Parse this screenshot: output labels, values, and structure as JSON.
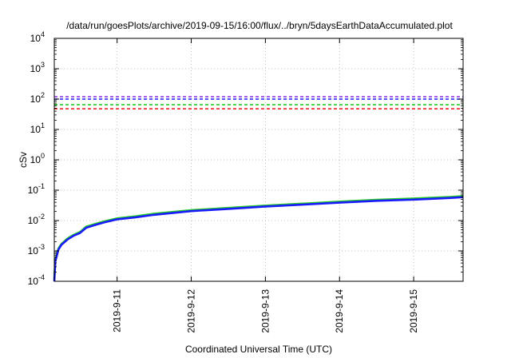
{
  "chart_data": {
    "type": "line",
    "title": "/data/run/goesPlots/archive/2019-09-15/16:00/flux/../bryn/5daysEarthDataAccumulated.plot",
    "xlabel": "Coordinated Universal Time (UTC)",
    "ylabel": "cSv",
    "yscale": "log",
    "ylim": [
      0.0001,
      10000
    ],
    "xlim": [
      "2019-09-10 03:40",
      "2019-09-15 16:00"
    ],
    "grid": true,
    "legend": "none",
    "y_ticks": [
      {
        "value": 0.0001,
        "base": "10",
        "exp": "-4"
      },
      {
        "value": 0.001,
        "base": "10",
        "exp": "-3"
      },
      {
        "value": 0.01,
        "base": "10",
        "exp": "-2"
      },
      {
        "value": 0.1,
        "base": "10",
        "exp": "-1"
      },
      {
        "value": 1,
        "base": "10",
        "exp": "0"
      },
      {
        "value": 10,
        "base": "10",
        "exp": "1"
      },
      {
        "value": 100,
        "base": "10",
        "exp": "2"
      },
      {
        "value": 1000,
        "base": "10",
        "exp": "3"
      },
      {
        "value": 10000,
        "base": "10",
        "exp": "4"
      }
    ],
    "x_ticks": [
      {
        "value": "2019-09-11 00:00",
        "label": "2019-9-11"
      },
      {
        "value": "2019-09-12 00:00",
        "label": "2019-9-12"
      },
      {
        "value": "2019-09-13 00:00",
        "label": "2019-9-13"
      },
      {
        "value": "2019-09-14 00:00",
        "label": "2019-9-14"
      },
      {
        "value": "2019-09-15 00:00",
        "label": "2019-9-15"
      }
    ],
    "reference_lines": [
      {
        "y": 120,
        "color": "#8a2be2"
      },
      {
        "y": 100,
        "color": "#1a1aff"
      },
      {
        "y": 65,
        "color": "#22cc22"
      },
      {
        "y": 48,
        "color": "#ee1111"
      }
    ],
    "series": [
      {
        "color": "#22cc22",
        "x": [
          "2019-09-10 03:40",
          "2019-09-10 04:00",
          "2019-09-10 05:00",
          "2019-09-10 06:00",
          "2019-09-10 08:00",
          "2019-09-10 10:00",
          "2019-09-10 12:00",
          "2019-09-10 14:00",
          "2019-09-10 17:00",
          "2019-09-10 20:00",
          "2019-09-11 00:00",
          "2019-09-11 06:00",
          "2019-09-11 12:00",
          "2019-09-12 00:00",
          "2019-09-12 12:00",
          "2019-09-13 00:00",
          "2019-09-13 12:00",
          "2019-09-14 00:00",
          "2019-09-14 12:00",
          "2019-09-15 00:00",
          "2019-09-15 12:00",
          "2019-09-15 16:00"
        ],
        "values": [
          0.00012,
          0.0005,
          0.0012,
          0.0017,
          0.0026,
          0.0034,
          0.0042,
          0.0063,
          0.0078,
          0.0095,
          0.0118,
          0.0138,
          0.0168,
          0.022,
          0.026,
          0.031,
          0.036,
          0.042,
          0.048,
          0.053,
          0.06,
          0.064
        ]
      },
      {
        "color": "#1a1aff",
        "x": [
          "2019-09-10 03:40",
          "2019-09-10 04:00",
          "2019-09-10 05:00",
          "2019-09-10 06:00",
          "2019-09-10 08:00",
          "2019-09-10 10:00",
          "2019-09-10 12:00",
          "2019-09-10 14:00",
          "2019-09-10 17:00",
          "2019-09-10 20:00",
          "2019-09-11 00:00",
          "2019-09-11 06:00",
          "2019-09-11 12:00",
          "2019-09-12 00:00",
          "2019-09-12 12:00",
          "2019-09-13 00:00",
          "2019-09-13 12:00",
          "2019-09-14 00:00",
          "2019-09-14 12:00",
          "2019-09-15 00:00",
          "2019-09-15 12:00",
          "2019-09-15 16:00"
        ],
        "values": [
          0.0001,
          0.00045,
          0.0011,
          0.0016,
          0.0024,
          0.0032,
          0.0039,
          0.0058,
          0.0072,
          0.0088,
          0.011,
          0.0128,
          0.0155,
          0.0205,
          0.0242,
          0.029,
          0.0335,
          0.039,
          0.0445,
          0.049,
          0.0555,
          0.059
        ]
      }
    ]
  }
}
